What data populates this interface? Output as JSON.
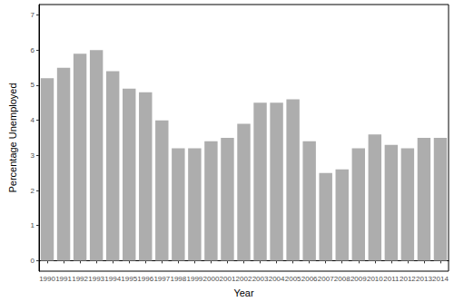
{
  "chart_data": {
    "type": "bar",
    "x_label": "Year",
    "y_label": "Percentage Unemployed",
    "categories": [
      "1990",
      "1991",
      "1992",
      "1993",
      "1994",
      "1995",
      "1996",
      "1997",
      "1998",
      "1999",
      "2000",
      "2001",
      "2002",
      "2003",
      "2004",
      "2005",
      "2006",
      "2007",
      "2008",
      "2009",
      "2010",
      "2011",
      "2012",
      "2013",
      "2014"
    ],
    "values": [
      5.2,
      5.5,
      5.9,
      6.0,
      5.4,
      4.9,
      4.8,
      4.0,
      3.2,
      3.2,
      3.4,
      3.5,
      3.9,
      4.5,
      4.5,
      4.6,
      3.4,
      2.5,
      2.6,
      3.2,
      3.6,
      3.3,
      3.2,
      3.5,
      3.5
    ],
    "color": "#adadad",
    "ylim": [
      -0.3,
      7.3
    ],
    "yticks": [
      0,
      1,
      2,
      3,
      4,
      5,
      6,
      7
    ],
    "grid": false
  }
}
